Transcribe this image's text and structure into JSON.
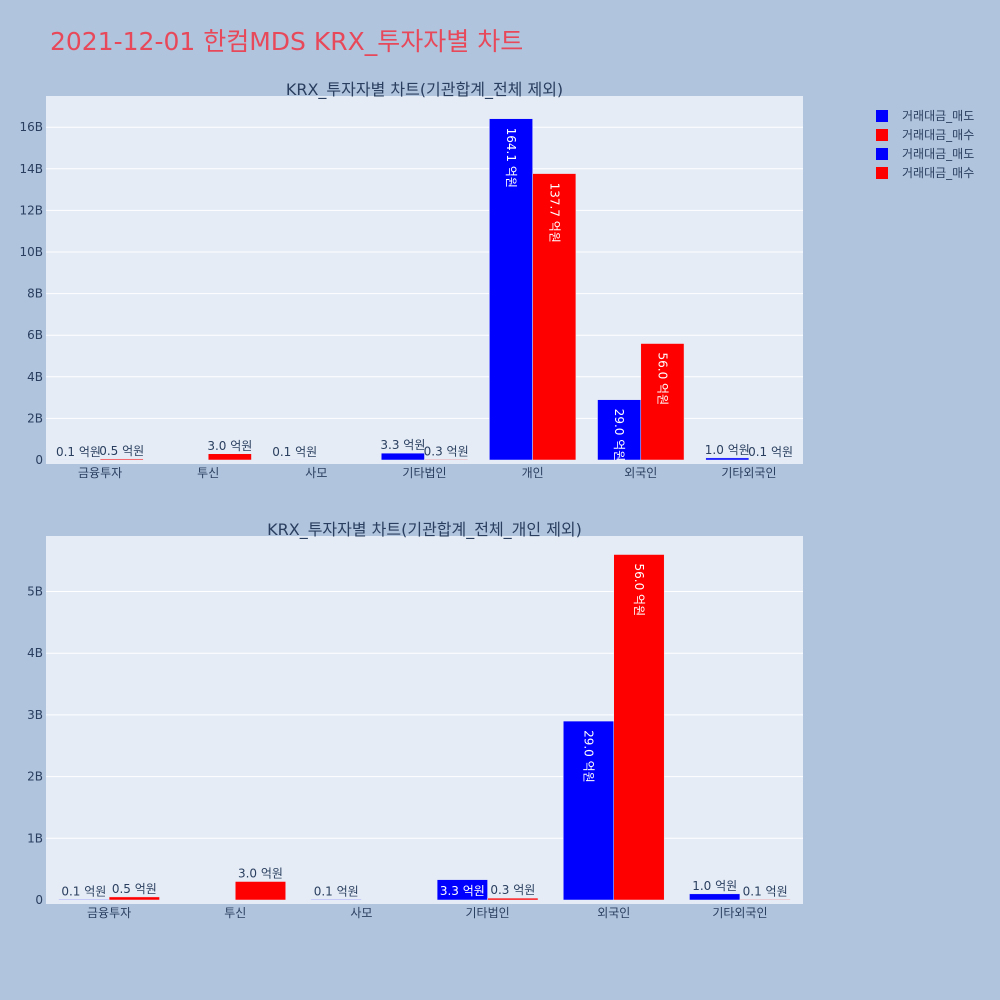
{
  "page": {
    "title": "2021-12-01 한컴MDS KRX_투자자별 차트"
  },
  "colors": {
    "background": "#b0c4de",
    "plot_bg": "#e5ecf6",
    "sell": "#0000ff",
    "buy": "#ff0000",
    "title": "#e8495a",
    "text": "#2a3f5f"
  },
  "legend": {
    "items": [
      {
        "label": "거래대금_매도",
        "color": "#0000ff"
      },
      {
        "label": "거래대금_매수",
        "color": "#ff0000"
      },
      {
        "label": "거래대금_매도",
        "color": "#0000ff"
      },
      {
        "label": "거래대금_매수",
        "color": "#ff0000"
      }
    ]
  },
  "chart_data": [
    {
      "type": "bar",
      "title": "KRX_투자자별 차트(기관합계_전체 제외)",
      "categories": [
        "금융투자",
        "투신",
        "사모",
        "기타법인",
        "개인",
        "외국인",
        "기타외국인"
      ],
      "ylim": [
        0,
        17500000000
      ],
      "yticks": [
        0,
        2000000000,
        4000000000,
        6000000000,
        8000000000,
        10000000000,
        12000000000,
        14000000000,
        16000000000
      ],
      "ytick_labels": [
        "0",
        "2B",
        "4B",
        "6B",
        "8B",
        "10B",
        "12B",
        "14B",
        "16B"
      ],
      "grid": true,
      "series": [
        {
          "name": "거래대금_매도",
          "color": "#0000ff",
          "values": [
            10000000,
            0,
            10000000,
            330000000,
            16410000000,
            2900000000,
            100000000
          ],
          "labels": [
            "0.1 억원",
            "",
            "0.1 억원",
            "3.3 억원",
            "164.1 억원",
            "29.0 억원",
            "1.0 억원"
          ]
        },
        {
          "name": "거래대금_매수",
          "color": "#ff0000",
          "values": [
            50000000,
            300000000,
            0,
            30000000,
            13770000000,
            5600000000,
            10000000
          ],
          "labels": [
            "0.5 억원",
            "3.0 억원",
            "",
            "0.3 억원",
            "137.7 억원",
            "56.0 억원",
            "0.1 억원"
          ]
        }
      ]
    },
    {
      "type": "bar",
      "title": "KRX_투자자별 차트(기관합계_전체_개인 제외)",
      "categories": [
        "금융투자",
        "투신",
        "사모",
        "기타법인",
        "외국인",
        "기타외국인"
      ],
      "ylim": [
        0,
        5900000000
      ],
      "yticks": [
        0,
        1000000000,
        2000000000,
        3000000000,
        4000000000,
        5000000000
      ],
      "ytick_labels": [
        "0",
        "1B",
        "2B",
        "3B",
        "4B",
        "5B"
      ],
      "grid": true,
      "series": [
        {
          "name": "거래대금_매도",
          "color": "#0000ff",
          "values": [
            10000000,
            0,
            10000000,
            330000000,
            2900000000,
            100000000
          ],
          "labels": [
            "0.1 억원",
            "",
            "0.1 억원",
            "3.3 억원",
            "29.0 억원",
            "1.0 억원"
          ]
        },
        {
          "name": "거래대금_매수",
          "color": "#ff0000",
          "values": [
            50000000,
            300000000,
            0,
            30000000,
            5600000000,
            10000000
          ],
          "labels": [
            "0.5 억원",
            "3.0 억원",
            "",
            "0.3 억원",
            "56.0 억원",
            "0.1 억원"
          ]
        }
      ]
    }
  ]
}
